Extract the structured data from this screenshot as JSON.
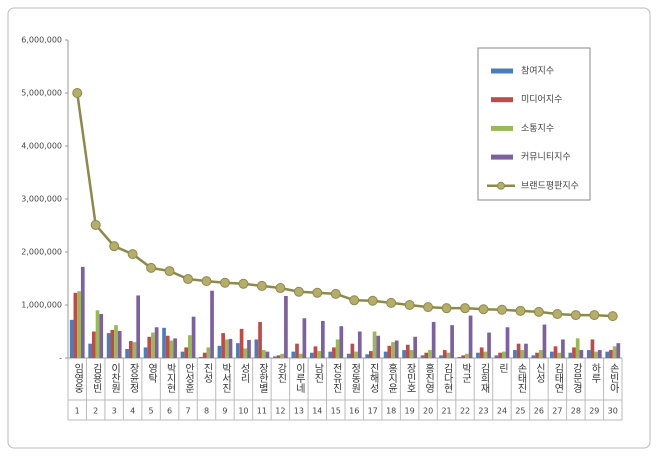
{
  "chart_data": {
    "type": "bar-line",
    "categories": [
      "임영웅",
      "김용빈",
      "이찬원",
      "장윤정",
      "영탁",
      "박지현",
      "안성훈",
      "진성",
      "박서진",
      "성리",
      "장한별",
      "강진",
      "이루네",
      "남진",
      "전유진",
      "정동원",
      "진해성",
      "홍지윤",
      "장민호",
      "홍진영",
      "김다현",
      "박군",
      "김희재",
      "린",
      "손태진",
      "신성",
      "김태연",
      "강문경",
      "하루",
      "손빈아"
    ],
    "ranks": [
      1,
      2,
      3,
      4,
      5,
      6,
      7,
      8,
      9,
      10,
      11,
      12,
      13,
      14,
      15,
      16,
      17,
      18,
      19,
      20,
      21,
      22,
      23,
      24,
      25,
      26,
      27,
      28,
      29,
      30
    ],
    "series": [
      {
        "name": "참여지수",
        "type": "bar",
        "color": "#4a7ebb",
        "values": [
          720000,
          270000,
          470000,
          170000,
          200000,
          570000,
          120000,
          20000,
          230000,
          280000,
          350000,
          30000,
          120000,
          100000,
          120000,
          80000,
          70000,
          120000,
          150000,
          50000,
          50000,
          20000,
          100000,
          50000,
          150000,
          50000,
          120000,
          100000,
          150000,
          120000
        ]
      },
      {
        "name": "미디어지수",
        "type": "bar",
        "color": "#be4b48",
        "values": [
          1230000,
          500000,
          530000,
          320000,
          400000,
          420000,
          200000,
          100000,
          470000,
          550000,
          680000,
          50000,
          270000,
          220000,
          200000,
          270000,
          130000,
          230000,
          250000,
          100000,
          150000,
          50000,
          200000,
          100000,
          270000,
          100000,
          220000,
          200000,
          350000,
          150000
        ]
      },
      {
        "name": "소통지수",
        "type": "bar",
        "color": "#98b954",
        "values": [
          1260000,
          900000,
          620000,
          300000,
          480000,
          330000,
          430000,
          200000,
          350000,
          180000,
          150000,
          80000,
          80000,
          130000,
          350000,
          120000,
          500000,
          300000,
          150000,
          150000,
          100000,
          80000,
          120000,
          120000,
          150000,
          150000,
          100000,
          370000,
          120000,
          220000
        ]
      },
      {
        "name": "커뮤니티지수",
        "type": "bar",
        "color": "#7d60a0",
        "values": [
          1720000,
          830000,
          510000,
          1180000,
          580000,
          370000,
          780000,
          1270000,
          360000,
          340000,
          120000,
          1170000,
          750000,
          700000,
          600000,
          500000,
          420000,
          330000,
          400000,
          680000,
          620000,
          800000,
          480000,
          580000,
          270000,
          630000,
          350000,
          150000,
          150000,
          280000
        ]
      },
      {
        "name": "브랜드평판지수",
        "type": "line",
        "color": "#8c8a4a",
        "values": [
          5000000,
          2510000,
          2110000,
          1960000,
          1700000,
          1640000,
          1490000,
          1450000,
          1420000,
          1400000,
          1360000,
          1320000,
          1250000,
          1230000,
          1210000,
          1090000,
          1080000,
          1040000,
          1000000,
          960000,
          940000,
          940000,
          920000,
          910000,
          890000,
          870000,
          830000,
          810000,
          810000,
          790000
        ]
      }
    ],
    "ylim": [
      0,
      6000000
    ],
    "yticks": [
      {
        "value": 0,
        "label": "-"
      },
      {
        "value": 1000000,
        "label": "1,000,000"
      },
      {
        "value": 2000000,
        "label": "2,000,000"
      },
      {
        "value": 3000000,
        "label": "3,000,000"
      },
      {
        "value": 4000000,
        "label": "4,000,000"
      },
      {
        "value": 5000000,
        "label": "5,000,000"
      },
      {
        "value": 6000000,
        "label": "6,000,000"
      }
    ]
  }
}
